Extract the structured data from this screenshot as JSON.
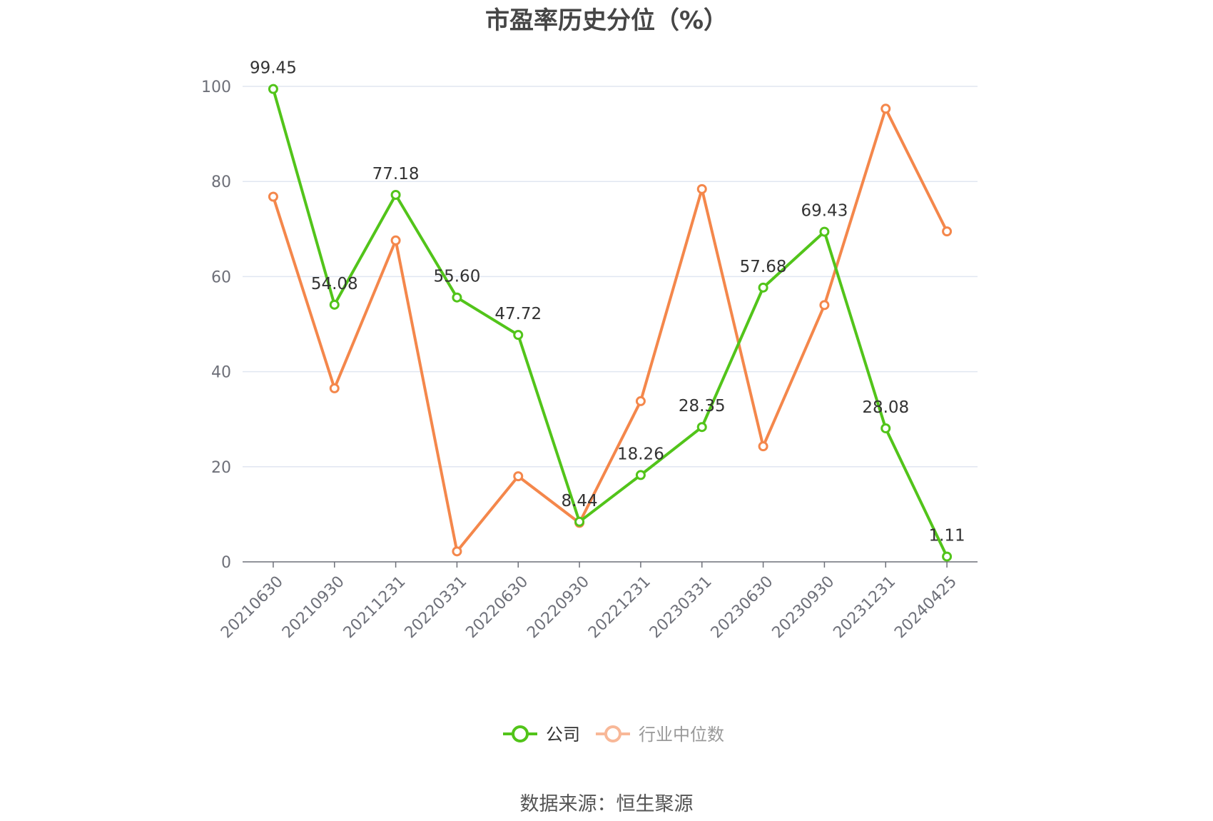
{
  "chart_data": {
    "type": "line",
    "title": "市盈率历史分位（%）",
    "categories": [
      "20210630",
      "20210930",
      "20211231",
      "20220331",
      "20220630",
      "20220930",
      "20221231",
      "20230331",
      "20230630",
      "20230930",
      "20231231",
      "20240425"
    ],
    "ylim": [
      0,
      100
    ],
    "yticks": [
      0,
      20,
      40,
      60,
      80,
      100
    ],
    "grid": true,
    "legend_position": "bottom-center",
    "series": [
      {
        "name": "公司",
        "color": "#52c41a",
        "values": [
          99.45,
          54.08,
          77.18,
          55.6,
          47.72,
          8.44,
          18.26,
          28.35,
          57.68,
          69.43,
          28.08,
          1.11
        ],
        "labels": [
          "99.45",
          "54.08",
          "77.18",
          "55.60",
          "47.72",
          "8.44",
          "18.26",
          "28.35",
          "57.68",
          "69.43",
          "28.08",
          "1.11"
        ],
        "show_labels": true
      },
      {
        "name": "行业中位数",
        "color": "#f4874b",
        "values": [
          76.8,
          36.5,
          67.6,
          2.2,
          18.0,
          8.2,
          33.8,
          78.4,
          24.3,
          54.0,
          95.3,
          69.5
        ],
        "show_labels": false
      }
    ]
  },
  "source": "数据来源：恒生聚源"
}
